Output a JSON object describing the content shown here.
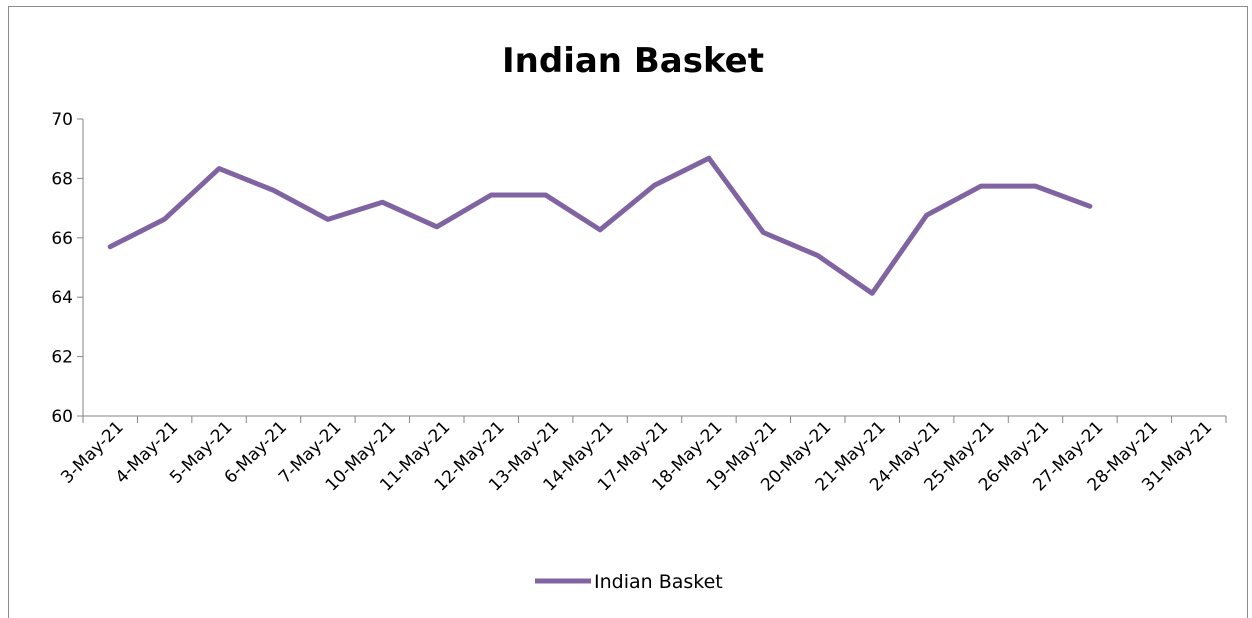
{
  "chart_data": {
    "type": "line",
    "title": "Indian Basket",
    "categories": [
      "3-May-21",
      "4-May-21",
      "5-May-21",
      "6-May-21",
      "7-May-21",
      "10-May-21",
      "11-May-21",
      "12-May-21",
      "13-May-21",
      "14-May-21",
      "17-May-21",
      "18-May-21",
      "19-May-21",
      "20-May-21",
      "21-May-21",
      "24-May-21",
      "25-May-21",
      "26-May-21",
      "27-May-21",
      "28-May-21",
      "31-May-21"
    ],
    "series": [
      {
        "name": "Indian Basket",
        "values": [
          65.7,
          66.63,
          68.33,
          67.6,
          66.62,
          67.2,
          66.37,
          67.44,
          67.44,
          66.27,
          67.77,
          68.68,
          66.18,
          65.4,
          64.13,
          66.76,
          67.74,
          67.74,
          67.06,
          null,
          null
        ]
      }
    ],
    "ylim": [
      60,
      70
    ],
    "yticks": [
      60,
      62,
      64,
      66,
      68,
      70
    ],
    "grid": false,
    "legend": "bottom",
    "colors": {
      "series": "#8064a2",
      "axis": "#868686"
    }
  }
}
